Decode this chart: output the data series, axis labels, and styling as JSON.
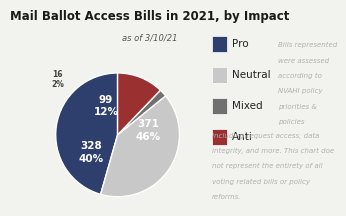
{
  "title": "Mail Ballot Access Bills in 2021, by Impact",
  "subtitle": "as of 3/10/21",
  "labels": [
    "Pro",
    "Neutral",
    "Mixed",
    "Anti"
  ],
  "values": [
    371,
    328,
    16,
    99
  ],
  "percents": [
    "46%",
    "40%",
    "2%",
    "12%"
  ],
  "colors": [
    "#2e3f6e",
    "#c8c8c8",
    "#707070",
    "#9b3030"
  ],
  "background_color": "#f2f2ee",
  "start_angle": 90,
  "legend_labels": [
    "Pro",
    "Neutral",
    "Mixed",
    "Anti"
  ],
  "ann_top": [
    "Bills represented",
    "were assessed",
    "according to",
    "NVAHI policy",
    "priorities &",
    "policies"
  ],
  "ann_bot": [
    "including request access, data",
    "integrity, and more. This chart doe",
    "not represent the entirety of all",
    "voting related bills or policy",
    "reforms."
  ],
  "title_fontsize": 8.5,
  "subtitle_fontsize": 6.0,
  "legend_fontsize": 7.5,
  "ann_fontsize": 5.0,
  "label_fontsize_large": 7.5,
  "label_fontsize_small": 5.5
}
